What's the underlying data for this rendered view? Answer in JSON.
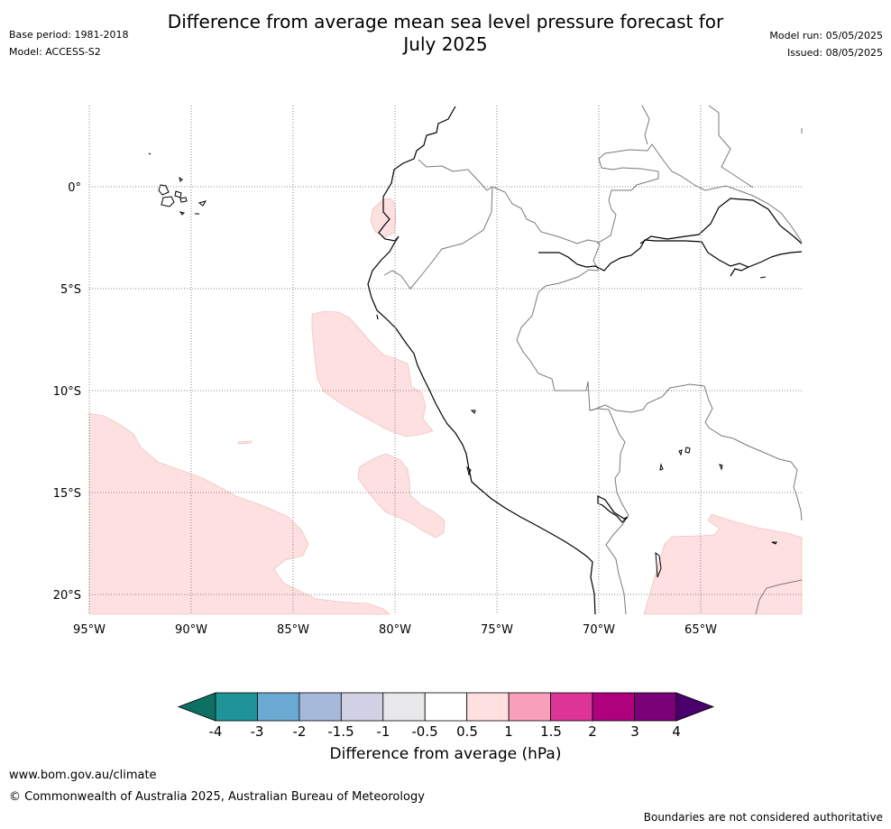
{
  "title_line1": "Difference from average mean sea level pressure forecast for",
  "title_line2": "July 2025",
  "base_period": "Base period: 1981-2018",
  "model": "Model: ACCESS-S2",
  "model_run": "Model run: 05/05/2025",
  "issued": "Issued: 08/05/2025",
  "map": {
    "lon_labels": [
      "95°W",
      "90°W",
      "85°W",
      "80°W",
      "75°W",
      "70°W",
      "65°W"
    ],
    "lat_labels": [
      "0°",
      "5°S",
      "10°S",
      "15°S",
      "20°S"
    ]
  },
  "colorbar": {
    "label": "Difference from average (hPa)",
    "tick_labels": [
      "-4",
      "-3",
      "-2",
      "-1.5",
      "-1",
      "-0.5",
      "0.5",
      "1",
      "1.5",
      "2",
      "3",
      "4"
    ],
    "colors": [
      "#0d7063",
      "#1e9499",
      "#6aaad2",
      "#a6b9da",
      "#d1d1e6",
      "#e8e8ea",
      "#ffffff",
      "#fde0df",
      "#f8a0ba",
      "#dd3497",
      "#ae017e",
      "#7a0177",
      "#49006a"
    ]
  },
  "anomaly_color": "#fde0df",
  "website": "www.bom.gov.au/climate",
  "copyright": "© Commonwealth of Australia 2025, Australian Bureau of Meteorology",
  "disclaimer": "Boundaries are not considered authoritative"
}
